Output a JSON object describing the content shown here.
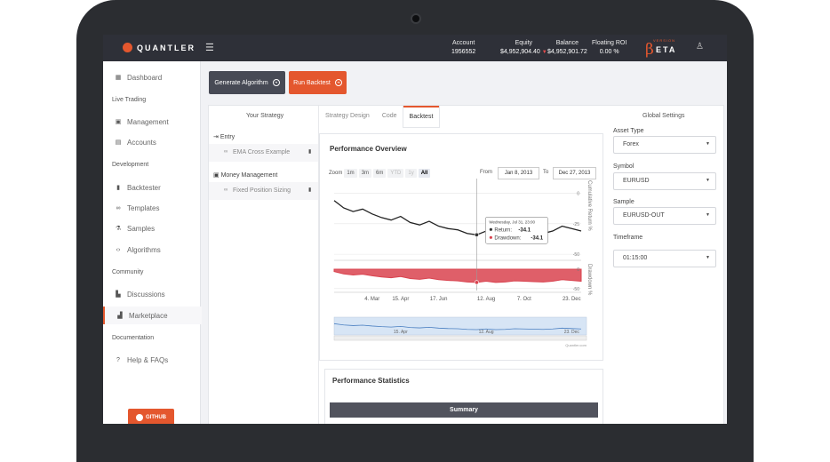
{
  "header": {
    "brand": "QUANTLER",
    "account_label": "Account",
    "account_value": "1956552",
    "equity_label": "Equity",
    "equity_value": "$4,952,904.40",
    "balance_label": "Balance",
    "balance_value": "$4,952,901.72",
    "roi_label": "Floating ROI",
    "roi_value": "0.00 %",
    "beta_prefix": "β",
    "beta_text": "ETA",
    "beta_sup": "VERSION"
  },
  "sidebar": {
    "dashboard": "Dashboard",
    "live_trading": "Live Trading",
    "management": "Management",
    "accounts": "Accounts",
    "development": "Development",
    "backtester": "Backtester",
    "templates": "Templates",
    "samples": "Samples",
    "algorithms": "Algorithms",
    "community": "Community",
    "discussions": "Discussions",
    "marketplace": "Marketplace",
    "documentation": "Documentation",
    "help": "Help & FAQs",
    "github": "GITHUB"
  },
  "toolbar": {
    "generate": "Generate Algorithm",
    "run": "Run Backtest"
  },
  "strategy": {
    "title": "Your Strategy",
    "entry": "Entry",
    "entry_item": "EMA Cross Example",
    "money": "Money Management",
    "money_item": "Fixed Position Sizing"
  },
  "tabs": {
    "design": "Strategy Design",
    "code": "Code",
    "backtest": "Backtest"
  },
  "settings": {
    "title": "Global Settings",
    "asset_label": "Asset Type",
    "asset_value": "Forex",
    "symbol_label": "Symbol",
    "symbol_value": "EURUSD",
    "sample_label": "Sample",
    "sample_value": "EURUSD-OUT",
    "timeframe_label": "Timeframe",
    "timeframe_value": "01:15:00"
  },
  "chart": {
    "title": "Performance Overview",
    "zoom_label": "Zoom",
    "zoom_buttons": [
      "1m",
      "3m",
      "6m",
      "YTD",
      "1y",
      "All"
    ],
    "from_label": "From",
    "from_value": "Jan 8, 2013",
    "to_label": "To",
    "to_value": "Dec 27, 2013",
    "y1_label": "Cumulative Return %",
    "y2_label": "Drawdown %",
    "y1_ticks": [
      "0",
      "-25",
      "-50"
    ],
    "y2_ticks": [
      "0",
      "-50"
    ],
    "x_ticks": [
      "4. Mar",
      "15. Apr",
      "17. Jun",
      "12. Aug",
      "7. Oct",
      "23. Dec"
    ],
    "nav_ticks": [
      "15. Apr",
      "12. Aug",
      "23. Dec"
    ],
    "tooltip_date": "Wednesday, Jul 31, 23:00",
    "tooltip_return_label": "Return:",
    "tooltip_return_value": "-34.1",
    "tooltip_dd_label": "Drawdown:",
    "tooltip_dd_value": "-34.1",
    "credit": "Quantler.com"
  },
  "chart_data": {
    "type": "line",
    "x": [
      "Jan 8",
      "Jan 22",
      "Feb 5",
      "Feb 19",
      "Mar 4",
      "Mar 18",
      "Apr 1",
      "Apr 15",
      "Apr 29",
      "May 13",
      "May 27",
      "Jun 10",
      "Jun 24",
      "Jul 8",
      "Jul 22",
      "Jul 31",
      "Aug 12",
      "Aug 26",
      "Sep 9",
      "Sep 23",
      "Oct 7",
      "Oct 21",
      "Nov 4",
      "Nov 18",
      "Dec 2",
      "Dec 16",
      "Dec 27"
    ],
    "series": [
      {
        "name": "Return",
        "values": [
          -6,
          -12,
          -15,
          -13,
          -17,
          -20,
          -22,
          -19,
          -24,
          -26,
          -23,
          -27,
          -29,
          -30,
          -33,
          -34.1,
          -31,
          -34,
          -33,
          -30,
          -31,
          -32,
          -33,
          -31,
          -27,
          -29,
          -31
        ]
      },
      {
        "name": "Drawdown",
        "values": [
          -6,
          -12,
          -15,
          -13,
          -17,
          -20,
          -22,
          -19,
          -24,
          -26,
          -23,
          -27,
          -29,
          -30,
          -33,
          -34.1,
          -31,
          -34,
          -33,
          -30,
          -31,
          -32,
          -33,
          -31,
          -27,
          -29,
          -31
        ]
      }
    ],
    "ylim_return": [
      -55,
      12
    ],
    "ylim_drawdown": [
      -55,
      0
    ],
    "colors": {
      "return": "#222222",
      "drawdown": "#d9434f"
    }
  },
  "stats": {
    "title": "Performance Statistics",
    "summary": "Summary"
  }
}
